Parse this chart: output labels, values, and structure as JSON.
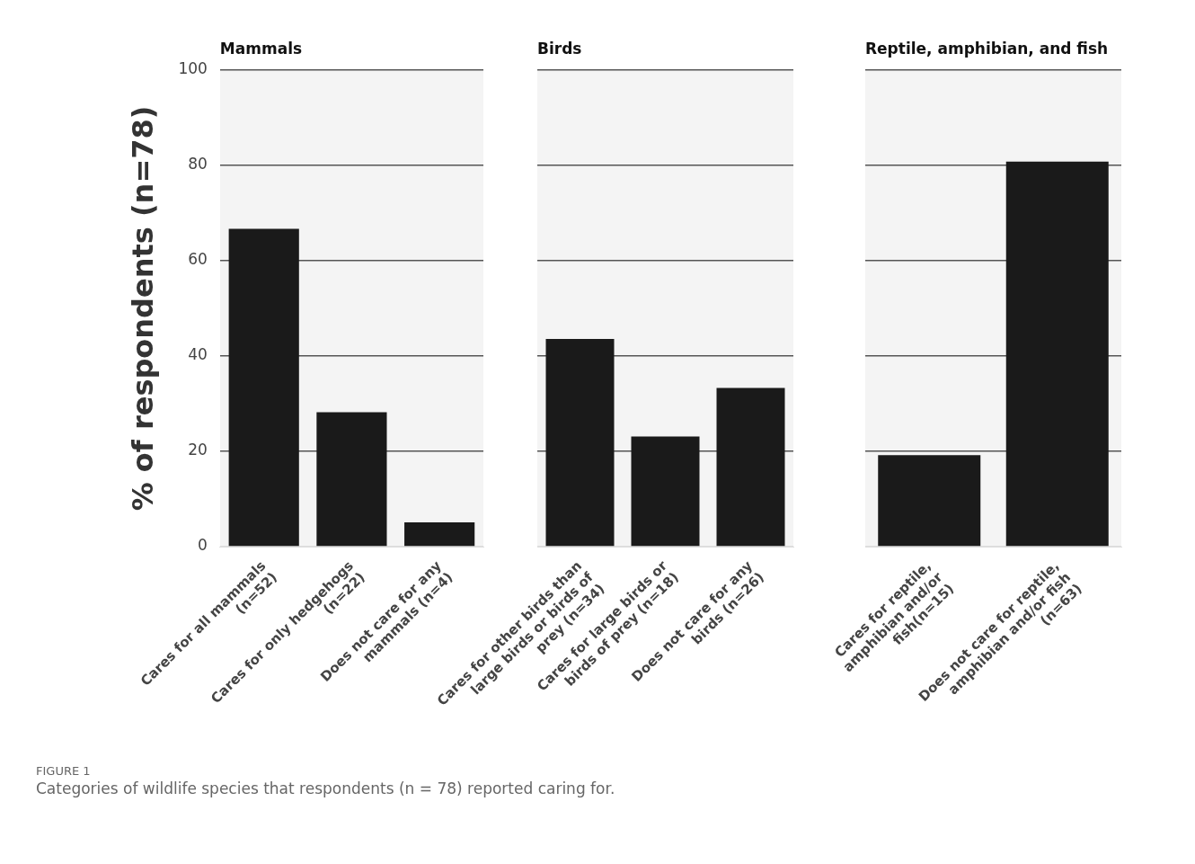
{
  "chart_data": [
    {
      "type": "bar",
      "title": "Mammals",
      "ylabel": "% of respondents (n=78)",
      "categories": [
        "Cares for all mammals (n=52)",
        "Cares for only hedgehogs (n=22)",
        "Does not care for any mammals (n=4)"
      ],
      "values": [
        66.7,
        28.2,
        5.1
      ],
      "color": "#1a1a1a",
      "ylim": [
        0,
        100
      ],
      "yticks": [
        0,
        20,
        40,
        60,
        80,
        100
      ],
      "grid": "y",
      "annotations": [
        "FIGURE 1",
        "Categories of wildlife species that respondents (n = 78) reported caring for."
      ]
    },
    {
      "type": "bar",
      "title": "Birds",
      "categories": [
        "Cares for other birds than large birds or birds of prey (n=34)",
        "Cares for large birds or birds of prey (n=18)",
        "Does not care for any birds (n=26)"
      ],
      "values": [
        43.6,
        23.1,
        33.3
      ],
      "color": "#1a1a1a",
      "ylim": [
        0,
        100
      ],
      "yticks": [
        0,
        20,
        40,
        60,
        80,
        100
      ],
      "grid": "y",
      "tick_labels": "x"
    },
    {
      "type": "bar",
      "title": "Reptile, amphibian, and fish",
      "categories": [
        "Cares for reptile, amphibian and/or fish(n=15)",
        "Does not care for reptile, amphibian and/or fish (n=63)"
      ],
      "values": [
        19.2,
        80.8
      ],
      "color": "#1a1a1a",
      "ylim": [
        0,
        100
      ],
      "yticks": [
        0,
        20,
        40,
        60,
        80,
        100
      ],
      "grid": "y",
      "tick_labels": "x"
    }
  ]
}
